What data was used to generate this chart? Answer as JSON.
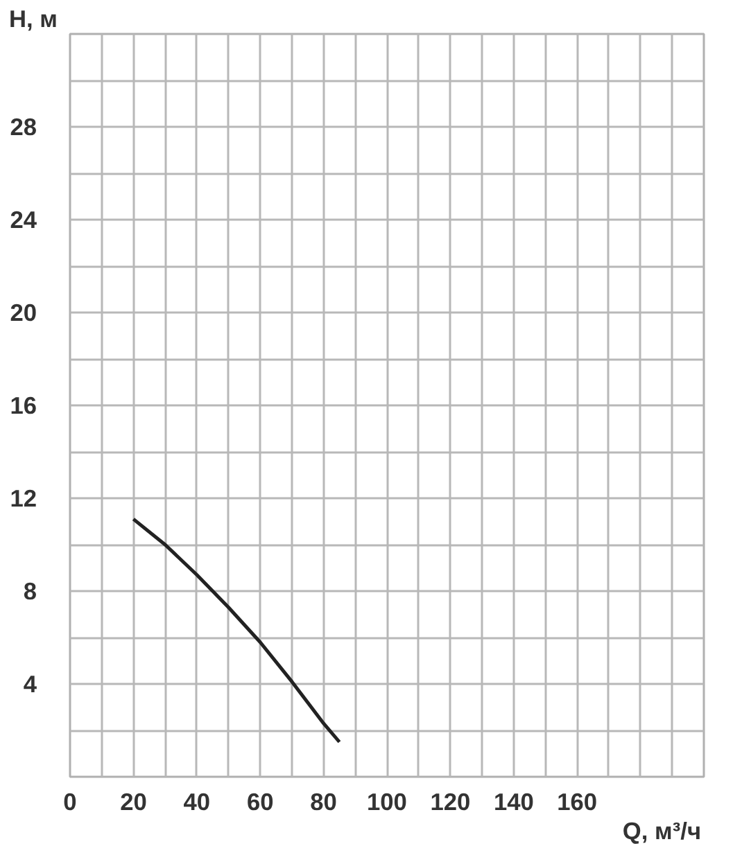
{
  "chart_data": {
    "type": "line",
    "xlabel": "Q, м³/ч",
    "ylabel": "Н, м",
    "series": [
      {
        "color": "#222222",
        "x": [
          20,
          30,
          40,
          50,
          60,
          70,
          80,
          85
        ],
        "values": [
          11.1,
          10.0,
          8.7,
          7.3,
          5.8,
          4.1,
          2.3,
          1.5
        ]
      }
    ],
    "xlim": [
      0,
      200
    ],
    "ylim": [
      0,
      32
    ],
    "xticks": [
      0,
      {
        "value": 10,
        "label": null
      },
      20,
      {
        "value": 30,
        "label": null
      },
      40,
      {
        "value": 50,
        "label": null
      },
      60,
      {
        "value": 70,
        "label": null
      },
      80,
      {
        "value": 90,
        "label": null
      },
      100,
      {
        "value": 110,
        "label": null
      },
      120,
      {
        "value": 130,
        "label": null
      },
      140,
      {
        "value": 150,
        "label": null
      },
      160,
      {
        "value": 170,
        "label": null
      },
      {
        "value": 180,
        "label": null
      },
      {
        "value": 190,
        "label": null
      },
      {
        "value": 200,
        "label": null
      }
    ],
    "yticks": [
      {
        "value": 0,
        "label": null
      },
      {
        "value": 2,
        "label": null
      },
      4,
      {
        "value": 6,
        "label": null
      },
      8,
      {
        "value": 10,
        "label": null
      },
      12,
      {
        "value": 14,
        "label": null
      },
      16,
      {
        "value": 18,
        "label": null
      },
      20,
      {
        "value": 22,
        "label": null
      },
      24,
      {
        "value": 26,
        "label": null
      },
      28,
      {
        "value": 30,
        "label": null
      },
      {
        "value": 32,
        "label": null
      }
    ],
    "grid": true,
    "marker": "none",
    "line_style": "solid"
  }
}
